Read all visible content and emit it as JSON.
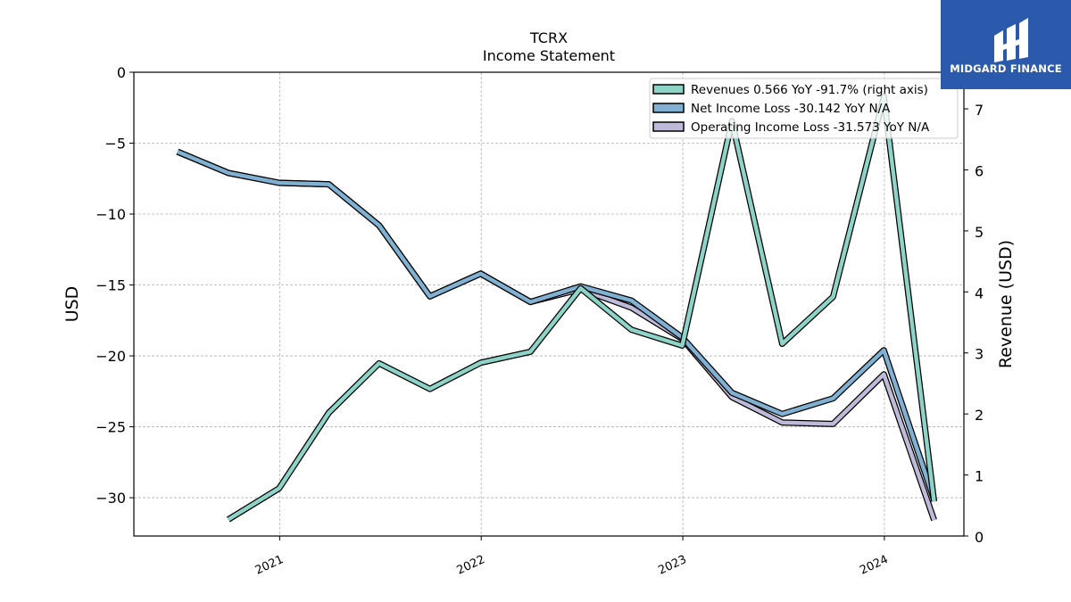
{
  "header": {
    "title": "TCRX",
    "subtitle": "Income Statement"
  },
  "logo": {
    "brand": "MIDGARD FINANCE",
    "background": "#2b5aad"
  },
  "chart_data": {
    "type": "line",
    "x_dates": [
      "2020-06-30",
      "2020-09-30",
      "2020-12-31",
      "2021-03-31",
      "2021-06-30",
      "2021-09-30",
      "2021-12-31",
      "2022-03-31",
      "2022-06-30",
      "2022-09-30",
      "2022-12-31",
      "2023-03-31",
      "2023-06-30",
      "2023-09-30",
      "2023-12-31",
      "2024-03-31"
    ],
    "x_ticks": [
      "2021",
      "2022",
      "2023",
      "2024"
    ],
    "ylabel": "USD",
    "ylabel_right": "Revenue (USD)",
    "ylim": [
      -32.7,
      0
    ],
    "ylim_right": [
      0,
      7.6
    ],
    "yticks_left": [
      "0",
      "−5",
      "−10",
      "−15",
      "−20",
      "−25",
      "−30"
    ],
    "yticks_right": [
      "0",
      "1",
      "2",
      "3",
      "4",
      "5",
      "6",
      "7"
    ],
    "grid": true,
    "legend_position": "top-right",
    "series": [
      {
        "name": "Revenues  0.566 YoY -91.7% (right axis)",
        "axis": "right",
        "color": "#8dd3c7",
        "values": [
          null,
          0.27,
          0.78,
          2.02,
          2.83,
          2.41,
          2.84,
          3.02,
          4.06,
          3.38,
          3.12,
          6.8,
          3.15,
          3.92,
          7.2,
          0.566
        ]
      },
      {
        "name": "Net Income Loss  -30.142 YoY N/A",
        "axis": "left",
        "color": "#80b1d3",
        "values": [
          -5.6,
          -7.1,
          -7.8,
          -7.9,
          -10.8,
          -15.8,
          -14.2,
          -16.2,
          -15.1,
          -16.1,
          -18.7,
          -22.6,
          -24.1,
          -23.0,
          -19.6,
          -30.142
        ]
      },
      {
        "name": "Operating Income Loss  -31.573 YoY N/A",
        "axis": "left",
        "color": "#bebada",
        "values": [
          -5.6,
          -7.1,
          -7.8,
          -7.9,
          -10.8,
          -15.8,
          -14.2,
          -16.2,
          -15.3,
          -16.6,
          -18.8,
          -22.9,
          -24.7,
          -24.8,
          -21.3,
          -31.573
        ]
      }
    ]
  }
}
